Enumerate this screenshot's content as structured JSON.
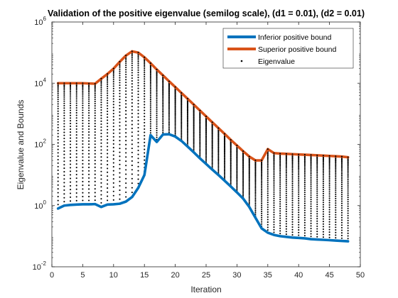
{
  "chart_data": {
    "type": "line",
    "title": "Validation of the positive eigenvalue (semilog scale), (d1 = 0.01), (d2 = 0.01)",
    "xlabel": "Iteration",
    "ylabel": "Eigenvalue and Bounds",
    "xlim": [
      0,
      50
    ],
    "ylim": [
      0.01,
      1000000
    ],
    "yscale": "log",
    "xticks": [
      "0",
      "5",
      "10",
      "15",
      "20",
      "25",
      "30",
      "35",
      "40",
      "45",
      "50"
    ],
    "yticks": [
      {
        "base": "10",
        "exp": "-2",
        "value": 0.01
      },
      {
        "base": "10",
        "exp": "0",
        "value": 1
      },
      {
        "base": "10",
        "exp": "2",
        "value": 100
      },
      {
        "base": "10",
        "exp": "4",
        "value": 10000
      },
      {
        "base": "10",
        "exp": "6",
        "value": 1000000
      }
    ],
    "grid": false,
    "legend_position": "top-right",
    "series": [
      {
        "name": "Inferior positive bound",
        "color": "#0072BD",
        "style": "line",
        "x": [
          1,
          2,
          3,
          4,
          5,
          6,
          7,
          8,
          9,
          10,
          11,
          12,
          13,
          14,
          15,
          16,
          17,
          18,
          19,
          20,
          21,
          22,
          23,
          24,
          25,
          26,
          27,
          28,
          29,
          30,
          31,
          32,
          33,
          34,
          35,
          36,
          37,
          38,
          39,
          40,
          41,
          42,
          43,
          44,
          45,
          46,
          47,
          48
        ],
        "y": [
          0.8,
          1.0,
          1.05,
          1.08,
          1.1,
          1.1,
          1.12,
          0.9,
          1.08,
          1.1,
          1.15,
          1.35,
          1.9,
          3.8,
          10,
          200,
          120,
          210,
          215,
          180,
          130,
          85,
          55,
          35,
          23,
          15,
          10,
          6.5,
          4.2,
          2.7,
          1.7,
          0.9,
          0.4,
          0.18,
          0.13,
          0.11,
          0.1,
          0.095,
          0.09,
          0.088,
          0.085,
          0.08,
          0.078,
          0.076,
          0.074,
          0.072,
          0.07,
          0.068
        ]
      },
      {
        "name": "Superior positive bound",
        "color": "#D95319",
        "style": "line",
        "x": [
          1,
          2,
          3,
          4,
          5,
          6,
          7,
          8,
          9,
          10,
          11,
          12,
          13,
          14,
          15,
          16,
          17,
          18,
          19,
          20,
          21,
          22,
          23,
          24,
          25,
          26,
          27,
          28,
          29,
          30,
          31,
          32,
          33,
          34,
          35,
          36,
          37,
          38,
          39,
          40,
          41,
          42,
          43,
          44,
          45,
          46,
          47,
          48
        ],
        "y": [
          10000,
          10000,
          10000,
          10000,
          10000,
          9800,
          9600,
          14000,
          20000,
          30000,
          50000,
          80000,
          110000,
          100000,
          70000,
          45000,
          28000,
          18000,
          11500,
          7500,
          4800,
          3100,
          2000,
          1280,
          820,
          530,
          340,
          220,
          140,
          92,
          60,
          40,
          30,
          30,
          70,
          52,
          50,
          49,
          48,
          47,
          46,
          45,
          44,
          43,
          42,
          41,
          40,
          38
        ]
      },
      {
        "name": "Eigenvalue",
        "color": "#000000",
        "style": "points",
        "x": [
          1,
          2,
          3,
          4,
          5,
          6,
          7,
          8,
          9,
          10,
          11,
          12,
          13,
          14,
          15,
          16,
          17,
          18,
          19,
          20,
          21,
          22,
          23,
          24,
          25,
          26,
          27,
          28,
          29,
          30,
          31,
          32,
          33,
          34,
          35,
          36,
          37,
          38,
          39,
          40,
          41,
          42,
          43,
          44,
          45,
          46,
          47,
          48
        ],
        "upper": [
          10000,
          10000,
          10000,
          10000,
          10000,
          9800,
          9600,
          14000,
          20000,
          30000,
          50000,
          80000,
          110000,
          100000,
          70000,
          45000,
          28000,
          18000,
          11500,
          7500,
          4800,
          3100,
          2000,
          1280,
          820,
          530,
          340,
          220,
          140,
          92,
          60,
          40,
          30,
          30,
          70,
          52,
          50,
          49,
          48,
          47,
          46,
          45,
          44,
          43,
          42,
          41,
          40,
          38
        ],
        "lower": [
          0.8,
          1.0,
          1.05,
          1.08,
          1.1,
          1.1,
          1.12,
          0.9,
          1.08,
          1.1,
          1.15,
          1.35,
          1.9,
          3.8,
          10,
          200,
          120,
          210,
          215,
          180,
          130,
          85,
          55,
          35,
          23,
          15,
          10,
          6.5,
          4.2,
          2.7,
          1.7,
          0.9,
          0.4,
          0.18,
          0.13,
          0.11,
          0.1,
          0.095,
          0.09,
          0.088,
          0.085,
          0.08,
          0.078,
          0.076,
          0.074,
          0.072,
          0.07,
          0.068
        ]
      }
    ]
  }
}
